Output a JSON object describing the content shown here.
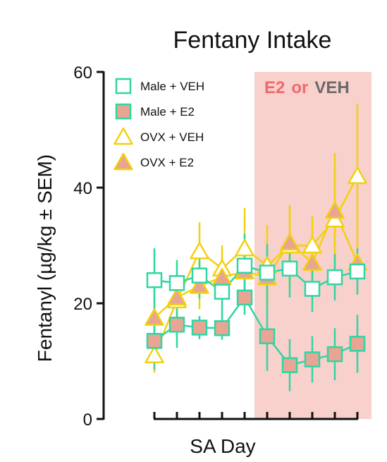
{
  "colors": {
    "teal": "#2fd6a3",
    "salmon": "#e8a593",
    "yellow": "#f2d10f",
    "band": "#f8d0cc",
    "e2_text": "#ee6a6a",
    "veh_text": "#6a6a6a",
    "axis": "#111111"
  },
  "chart_data": {
    "type": "line",
    "title": "Fentany Intake",
    "xlabel": "SA Day",
    "ylabel": "Fentanyl (µg/kg ± SEM)",
    "ylim": [
      0,
      60
    ],
    "yticks": [
      0,
      20,
      40,
      60
    ],
    "x": [
      1,
      2,
      3,
      4,
      5,
      6,
      7,
      8,
      9,
      10
    ],
    "treatment_band": {
      "from_day": 6,
      "to_day": 10,
      "label_e2": "E2",
      "label_or": "or",
      "label_veh": "VEH"
    },
    "legend": {
      "placement": "top-left"
    },
    "series": [
      {
        "name": "Male + VEH",
        "marker": "square",
        "fill": "#ffffff",
        "stroke": "teal",
        "values": [
          24,
          23.5,
          24.8,
          22,
          26.5,
          25.3,
          26,
          22.5,
          24.5,
          25.5
        ],
        "sem": [
          5.5,
          4,
          4,
          4.5,
          5.5,
          5,
          5,
          4,
          4,
          4
        ]
      },
      {
        "name": "Male + E2",
        "marker": "square",
        "fill": "salmon",
        "stroke": "teal",
        "values": [
          13.5,
          16.3,
          15.8,
          15.7,
          21,
          14.3,
          9.3,
          10.3,
          11.2,
          13
        ],
        "sem": [
          5,
          4,
          2,
          2,
          3,
          6,
          4.5,
          4,
          4.5,
          5
        ]
      },
      {
        "name": "OVX + VEH",
        "marker": "triangle",
        "fill": "#ffffff",
        "stroke": "yellow",
        "values": [
          11,
          20.5,
          29,
          26,
          29.5,
          26.5,
          30,
          30,
          34.5,
          42
        ],
        "sem": [
          3,
          4,
          5,
          4,
          7,
          7,
          7,
          5,
          9,
          12.5
        ]
      },
      {
        "name": "OVX + E2",
        "marker": "triangle",
        "fill": "salmon",
        "stroke": "yellow",
        "values": [
          17.5,
          21,
          23,
          24.5,
          25.5,
          24.5,
          30.5,
          27,
          36,
          27
        ],
        "sem": [
          5,
          4,
          4,
          3.5,
          4,
          4,
          6,
          3.5,
          10,
          2
        ]
      }
    ]
  }
}
